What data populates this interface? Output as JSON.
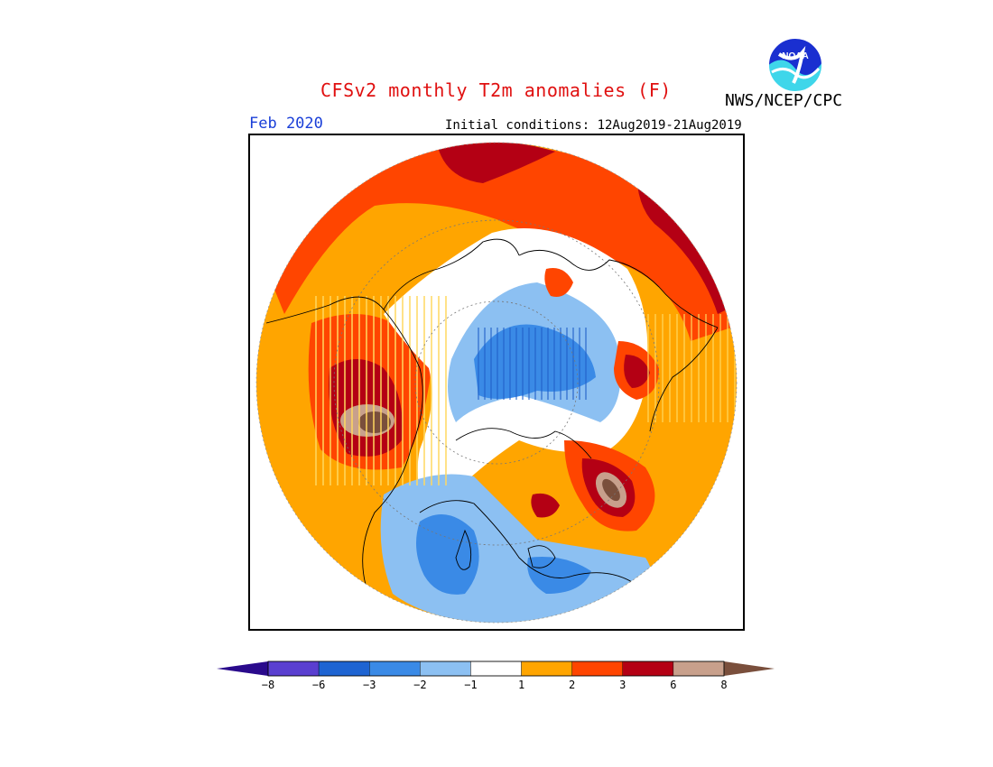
{
  "title": "CFSv2 monthly T2m anomalies (F)",
  "agency": "NWS/NCEP/CPC",
  "logo_text": "NOAA",
  "valid_month": "Feb 2020",
  "initial_conditions": "Initial conditions: 12Aug2019-21Aug2019",
  "map": {
    "projection": "north-polar-stereographic",
    "variable": "2m temperature anomaly",
    "units": "F"
  },
  "legend": {
    "thresholds": [
      "-8",
      "-6",
      "-3",
      "-2",
      "-1",
      "1",
      "2",
      "3",
      "6",
      "8"
    ],
    "colors": [
      "#2a0a8c",
      "#5a3fd0",
      "#1e64d2",
      "#3a8ae6",
      "#8cc0f2",
      "#ffffff",
      "#ffa500",
      "#ff4500",
      "#b40014",
      "#c8a08c",
      "#7a4f3c"
    ]
  },
  "colors": {
    "title": "#e01010",
    "month": "#1a3fd8",
    "frame": "#000000"
  }
}
